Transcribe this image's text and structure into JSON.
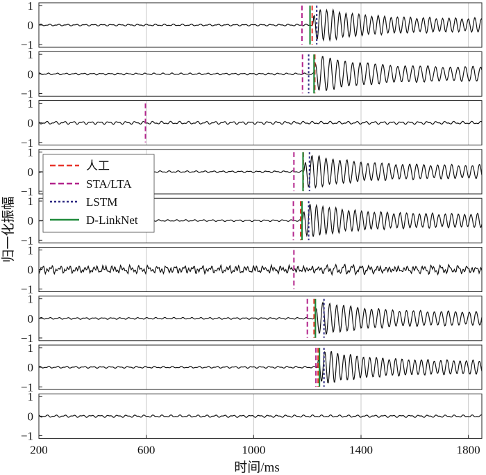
{
  "chart_data": {
    "type": "line",
    "layout": "stacked-panels",
    "panel_count": 9,
    "xlabel": "时间/ms",
    "ylabel": "归一化振幅",
    "xlim": [
      200,
      1850
    ],
    "ylim": [
      -1,
      1
    ],
    "x_ticks": [
      200,
      600,
      1000,
      1400,
      1800
    ],
    "x_tick_labels": [
      "200",
      "600",
      "1000",
      "1400",
      "1800"
    ],
    "y_ticks": [
      -1,
      0,
      1
    ],
    "y_tick_labels": [
      "−1",
      "0",
      "1"
    ],
    "grid": "vertical",
    "legend": {
      "position": "over panels 4-5, left",
      "entries": [
        {
          "key": "manual",
          "label": "人工",
          "color": "#e8352b",
          "style": "dashed"
        },
        {
          "key": "sta",
          "label": "STA/LTA",
          "color": "#b3258c",
          "style": "dashed"
        },
        {
          "key": "lstm",
          "label": "LSTM",
          "color": "#2e2a82",
          "style": "dotted"
        },
        {
          "key": "dlink",
          "label": "D-LinkNet",
          "color": "#1f8a3a",
          "style": "solid"
        }
      ]
    },
    "series_color": "#111111",
    "panels": [
      {
        "id": 1,
        "onset": 1218,
        "background_amp": 0.03,
        "event_amp": 0.9,
        "period": 24,
        "noise": false,
        "picks": {
          "manual": 1218,
          "sta": 1180,
          "lstm": 1235,
          "dlink": 1210
        }
      },
      {
        "id": 2,
        "onset": 1222,
        "background_amp": 0.03,
        "event_amp": 0.95,
        "period": 28,
        "noise": false,
        "picks": {
          "manual": 1228,
          "sta": 1182,
          "lstm": 1205,
          "dlink": 1225
        }
      },
      {
        "id": 3,
        "onset": null,
        "background_amp": 0.05,
        "event_amp": 0,
        "period": 30,
        "noise": false,
        "picks": {
          "manual": null,
          "sta": 597,
          "lstm": null,
          "dlink": null
        }
      },
      {
        "id": 4,
        "onset": 1185,
        "background_amp": 0.03,
        "event_amp": 0.9,
        "period": 26,
        "noise": false,
        "picks": {
          "manual": 1185,
          "sta": 1150,
          "lstm": 1208,
          "dlink": 1184
        }
      },
      {
        "id": 5,
        "onset": 1180,
        "background_amp": 0.03,
        "event_amp": 0.9,
        "period": 24,
        "noise": false,
        "picks": {
          "manual": 1175,
          "sta": 1148,
          "lstm": 1205,
          "dlink": 1180
        }
      },
      {
        "id": 6,
        "onset": 1150,
        "background_amp": 0.1,
        "event_amp": 0.15,
        "period": 30,
        "noise": true,
        "picks": {
          "manual": null,
          "sta": 1150,
          "lstm": null,
          "dlink": null
        }
      },
      {
        "id": 7,
        "onset": 1225,
        "background_amp": 0.03,
        "event_amp": 0.9,
        "period": 26,
        "noise": false,
        "picks": {
          "manual": 1225,
          "sta": 1200,
          "lstm": 1262,
          "dlink": 1230
        }
      },
      {
        "id": 8,
        "onset": 1235,
        "background_amp": 0.03,
        "event_amp": 0.9,
        "period": 24,
        "noise": false,
        "picks": {
          "manual": 1240,
          "sta": 1232,
          "lstm": 1262,
          "dlink": 1245
        }
      },
      {
        "id": 9,
        "onset": null,
        "background_amp": 0.04,
        "event_amp": 0,
        "period": 28,
        "noise": false,
        "picks": {
          "manual": null,
          "sta": null,
          "lstm": null,
          "dlink": null
        }
      }
    ]
  }
}
